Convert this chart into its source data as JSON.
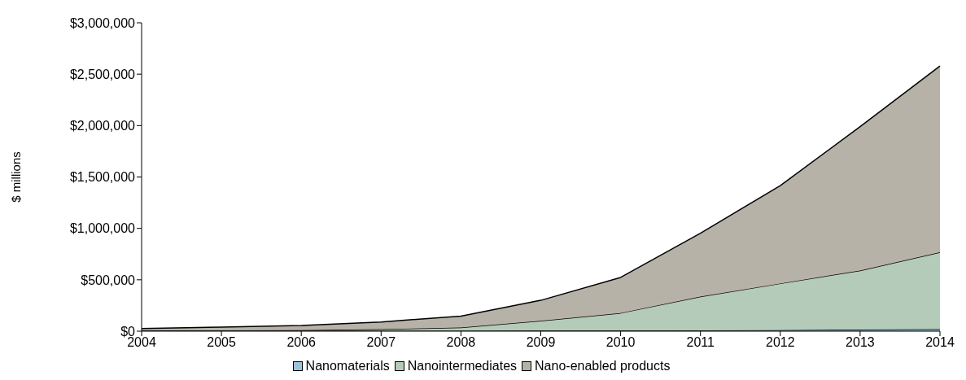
{
  "chart_data": {
    "type": "area",
    "stacked": true,
    "ylabel": "$ millions",
    "categories": [
      "2004",
      "2005",
      "2006",
      "2007",
      "2008",
      "2009",
      "2010",
      "2011",
      "2012",
      "2013",
      "2014"
    ],
    "series": [
      {
        "name": "Nanomaterials",
        "color": "#9dc3d8",
        "values": [
          2000,
          2000,
          3000,
          3000,
          4000,
          5000,
          6000,
          8000,
          10000,
          15000,
          20000
        ]
      },
      {
        "name": "Nanointermediates",
        "color": "#b5cbb9",
        "values": [
          3000,
          6000,
          7000,
          17000,
          31000,
          95000,
          171000,
          329000,
          454000,
          575000,
          747000
        ]
      },
      {
        "name": "Nano-enabled products",
        "color": "#b7b2a7",
        "values": [
          20000,
          32000,
          45000,
          70000,
          112000,
          200000,
          346000,
          616000,
          952000,
          1400000,
          1813000
        ]
      }
    ],
    "ylim": [
      0,
      3000000
    ],
    "yticks": [
      {
        "value": 0,
        "label": "$0"
      },
      {
        "value": 500000,
        "label": "$500,000"
      },
      {
        "value": 1000000,
        "label": "$1,000,000"
      },
      {
        "value": 1500000,
        "label": "$1,500,000"
      },
      {
        "value": 2000000,
        "label": "$2,000,000"
      },
      {
        "value": 2500000,
        "label": "$2,500,000"
      },
      {
        "value": 3000000,
        "label": "$3,000,000"
      }
    ],
    "grid": false,
    "legend": "bottom"
  }
}
